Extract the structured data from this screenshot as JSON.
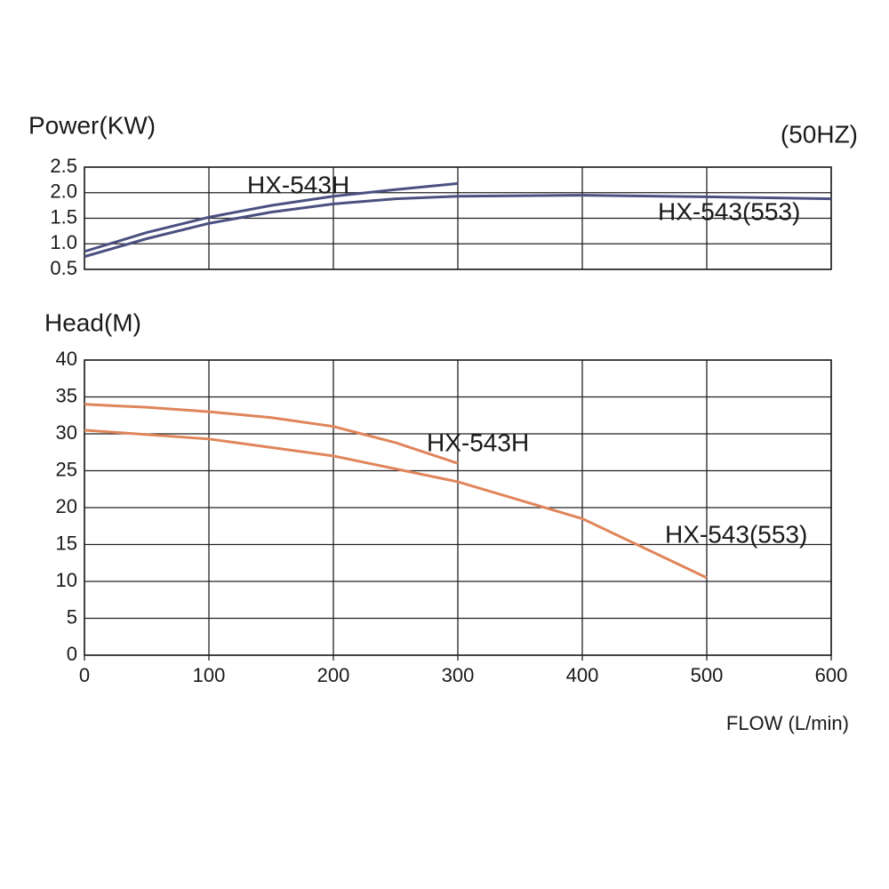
{
  "chart_data": [
    {
      "type": "line",
      "ylabel": "Power(KW)",
      "annotation": "(50HZ)",
      "xlim": [
        0,
        600
      ],
      "ylim": [
        0.5,
        2.5
      ],
      "yticks": [
        0.5,
        {
          "value": 1,
          "label": "1.0"
        },
        1.5,
        {
          "value": 2,
          "label": "2.0"
        },
        2.5
      ],
      "grid": true,
      "series": [
        {
          "name": "HX-543H",
          "color": "#4a5080",
          "x": [
            0,
            50,
            100,
            150,
            200,
            250,
            300
          ],
          "values": [
            0.85,
            1.22,
            1.52,
            1.75,
            1.93,
            2.06,
            2.18
          ]
        },
        {
          "name": "HX-543(553)",
          "color": "#4a5080",
          "x": [
            0,
            50,
            100,
            150,
            200,
            250,
            300,
            400,
            500,
            600
          ],
          "values": [
            0.75,
            1.1,
            1.4,
            1.62,
            1.78,
            1.88,
            1.93,
            1.95,
            1.92,
            1.88
          ]
        }
      ]
    },
    {
      "type": "line",
      "ylabel": "Head(M)",
      "xlabel": "FLOW (L/min)",
      "xlim": [
        0,
        600
      ],
      "ylim": [
        0,
        40
      ],
      "xticks": [
        0,
        100,
        200,
        300,
        400,
        500,
        600
      ],
      "yticks": [
        0,
        5,
        10,
        15,
        20,
        25,
        30,
        35,
        40
      ],
      "grid": true,
      "series": [
        {
          "name": "HX-543H",
          "color": "#e0855a",
          "x": [
            0,
            50,
            100,
            150,
            200,
            250,
            300
          ],
          "values": [
            34,
            33.6,
            33,
            32.2,
            31,
            28.8,
            26
          ]
        },
        {
          "name": "HX-543(553)",
          "color": "#e0855a",
          "x": [
            0,
            100,
            200,
            300,
            400,
            500
          ],
          "values": [
            30.5,
            29.3,
            27,
            23.5,
            18.5,
            10.5
          ]
        }
      ]
    }
  ]
}
